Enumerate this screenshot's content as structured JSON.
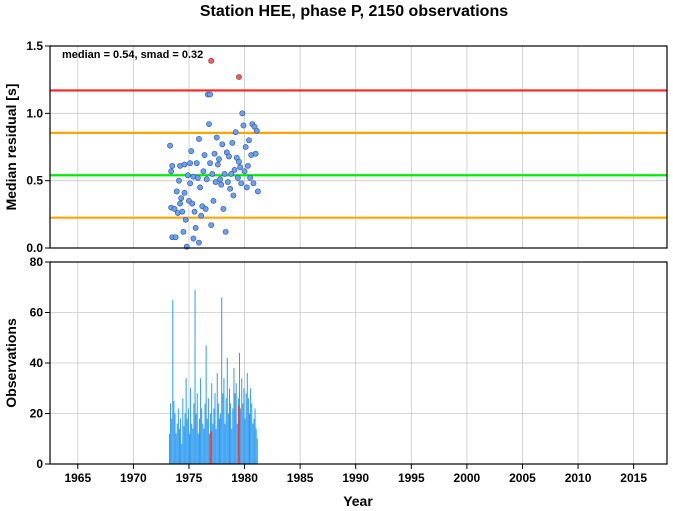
{
  "title": "Station HEE, phase P, 2150 observations",
  "chart_data": [
    {
      "type": "scatter",
      "panel": "top",
      "ylabel": "Median residual [s]",
      "annotation": "median = 0.54, smad = 0.32",
      "xlim": [
        1962.5,
        2018
      ],
      "ylim": [
        0,
        1.5
      ],
      "yticks": [
        0.0,
        0.5,
        1.0,
        1.5
      ],
      "ytick_labels": [
        "0.0",
        "0.5",
        "1.0",
        "1.5"
      ],
      "grid": true,
      "reference_lines": [
        {
          "y": 1.17,
          "color": "#ff2020"
        },
        {
          "y": 0.855,
          "color": "#ffa500"
        },
        {
          "y": 0.54,
          "color": "#00ee00"
        },
        {
          "y": 0.225,
          "color": "#ffa500"
        }
      ],
      "points_color": "#6aa0f0",
      "outliers_color": "#f06060",
      "points": [
        [
          1973.3,
          0.76
        ],
        [
          1973.4,
          0.57
        ],
        [
          1973.5,
          0.61
        ],
        [
          1973.4,
          0.3
        ],
        [
          1973.5,
          0.08
        ],
        [
          1973.7,
          0.29
        ],
        [
          1973.8,
          0.08
        ],
        [
          1973.9,
          0.42
        ],
        [
          1974.0,
          0.26
        ],
        [
          1974.1,
          0.5
        ],
        [
          1974.2,
          0.33
        ],
        [
          1974.2,
          0.61
        ],
        [
          1974.3,
          0.37
        ],
        [
          1974.4,
          0.27
        ],
        [
          1974.5,
          0.12
        ],
        [
          1974.6,
          0.62
        ],
        [
          1974.6,
          0.41
        ],
        [
          1974.7,
          0.21
        ],
        [
          1974.8,
          0.01
        ],
        [
          1974.9,
          0.54
        ],
        [
          1975.0,
          0.35
        ],
        [
          1975.1,
          0.48
        ],
        [
          1975.1,
          0.63
        ],
        [
          1975.2,
          0.72
        ],
        [
          1975.3,
          0.33
        ],
        [
          1975.4,
          0.53
        ],
        [
          1975.4,
          0.07
        ],
        [
          1975.5,
          0.27
        ],
        [
          1975.6,
          0.15
        ],
        [
          1975.7,
          0.63
        ],
        [
          1975.8,
          0.52
        ],
        [
          1975.9,
          0.81
        ],
        [
          1975.9,
          0.04
        ],
        [
          1976.0,
          0.45
        ],
        [
          1976.1,
          0.24
        ],
        [
          1976.2,
          0.31
        ],
        [
          1976.3,
          0.57
        ],
        [
          1976.4,
          0.69
        ],
        [
          1976.5,
          0.29
        ],
        [
          1976.6,
          0.51
        ],
        [
          1976.7,
          1.14
        ],
        [
          1976.8,
          0.92
        ],
        [
          1976.9,
          1.14
        ],
        [
          1976.9,
          0.63
        ],
        [
          1977.0,
          0.17
        ],
        [
          1977.1,
          0.55
        ],
        [
          1977.2,
          0.35
        ],
        [
          1977.3,
          0.7
        ],
        [
          1977.4,
          0.49
        ],
        [
          1977.5,
          0.82
        ],
        [
          1977.6,
          0.62
        ],
        [
          1977.7,
          0.66
        ],
        [
          1977.8,
          0.51
        ],
        [
          1977.9,
          0.47
        ],
        [
          1978.0,
          0.77
        ],
        [
          1978.1,
          0.29
        ],
        [
          1978.2,
          0.55
        ],
        [
          1978.3,
          0.12
        ],
        [
          1978.4,
          0.71
        ],
        [
          1978.5,
          0.49
        ],
        [
          1978.6,
          0.68
        ],
        [
          1978.7,
          0.44
        ],
        [
          1978.8,
          0.55
        ],
        [
          1978.9,
          0.78
        ],
        [
          1979.0,
          0.39
        ],
        [
          1979.1,
          0.58
        ],
        [
          1979.2,
          0.86
        ],
        [
          1979.3,
          0.67
        ],
        [
          1979.4,
          0.52
        ],
        [
          1979.5,
          0.64
        ],
        [
          1979.6,
          0.6
        ],
        [
          1979.7,
          0.48
        ],
        [
          1979.8,
          1.0
        ],
        [
          1979.9,
          0.91
        ],
        [
          1980.0,
          0.57
        ],
        [
          1980.1,
          0.75
        ],
        [
          1980.2,
          0.45
        ],
        [
          1980.3,
          0.61
        ],
        [
          1980.4,
          0.8
        ],
        [
          1980.5,
          0.52
        ],
        [
          1980.6,
          0.69
        ],
        [
          1980.7,
          0.92
        ],
        [
          1980.8,
          0.48
        ],
        [
          1980.9,
          0.9
        ],
        [
          1981.0,
          0.7
        ],
        [
          1981.1,
          0.87
        ],
        [
          1981.2,
          0.42
        ]
      ],
      "outliers": [
        [
          1977.0,
          1.39
        ],
        [
          1979.5,
          1.27
        ]
      ]
    },
    {
      "type": "bar",
      "panel": "bottom",
      "xlabel": "Year",
      "ylabel": "Observations",
      "xlim": [
        1962.5,
        2018
      ],
      "ylim": [
        0,
        80
      ],
      "xticks": [
        1965,
        1970,
        1975,
        1980,
        1985,
        1990,
        1995,
        2000,
        2005,
        2010,
        2015
      ],
      "xtick_labels": [
        "1965",
        "1970",
        "1975",
        "1980",
        "1985",
        "1990",
        "1995",
        "2000",
        "2005",
        "2010",
        "2015"
      ],
      "yticks": [
        0,
        20,
        40,
        60,
        80
      ],
      "ytick_labels": [
        "0",
        "20",
        "40",
        "60",
        "80"
      ],
      "grid": true,
      "bar_color": "#2e9bf0",
      "highlight_color": "#f04040",
      "bins": {
        "start": 1973.2,
        "width": 0.1,
        "values": [
          12,
          24,
          18,
          65,
          25,
          20,
          12,
          16,
          22,
          14,
          18,
          8,
          26,
          15,
          20,
          34,
          18,
          22,
          12,
          30,
          16,
          14,
          24,
          69,
          20,
          28,
          12,
          18,
          34,
          22,
          16,
          14,
          24,
          47,
          18,
          26,
          12,
          20,
          32,
          16,
          22,
          28,
          14,
          36,
          24,
          18,
          20,
          66,
          28,
          34,
          16,
          26,
          42,
          20,
          30,
          24,
          14,
          22,
          38,
          28,
          32,
          16,
          26,
          44,
          22,
          34,
          24,
          30,
          18,
          28,
          36,
          26,
          20,
          30,
          24,
          16,
          18,
          22,
          14,
          10
        ]
      },
      "highlights": [
        [
          1976.9,
          13
        ],
        [
          1979.4,
          23
        ]
      ]
    }
  ]
}
